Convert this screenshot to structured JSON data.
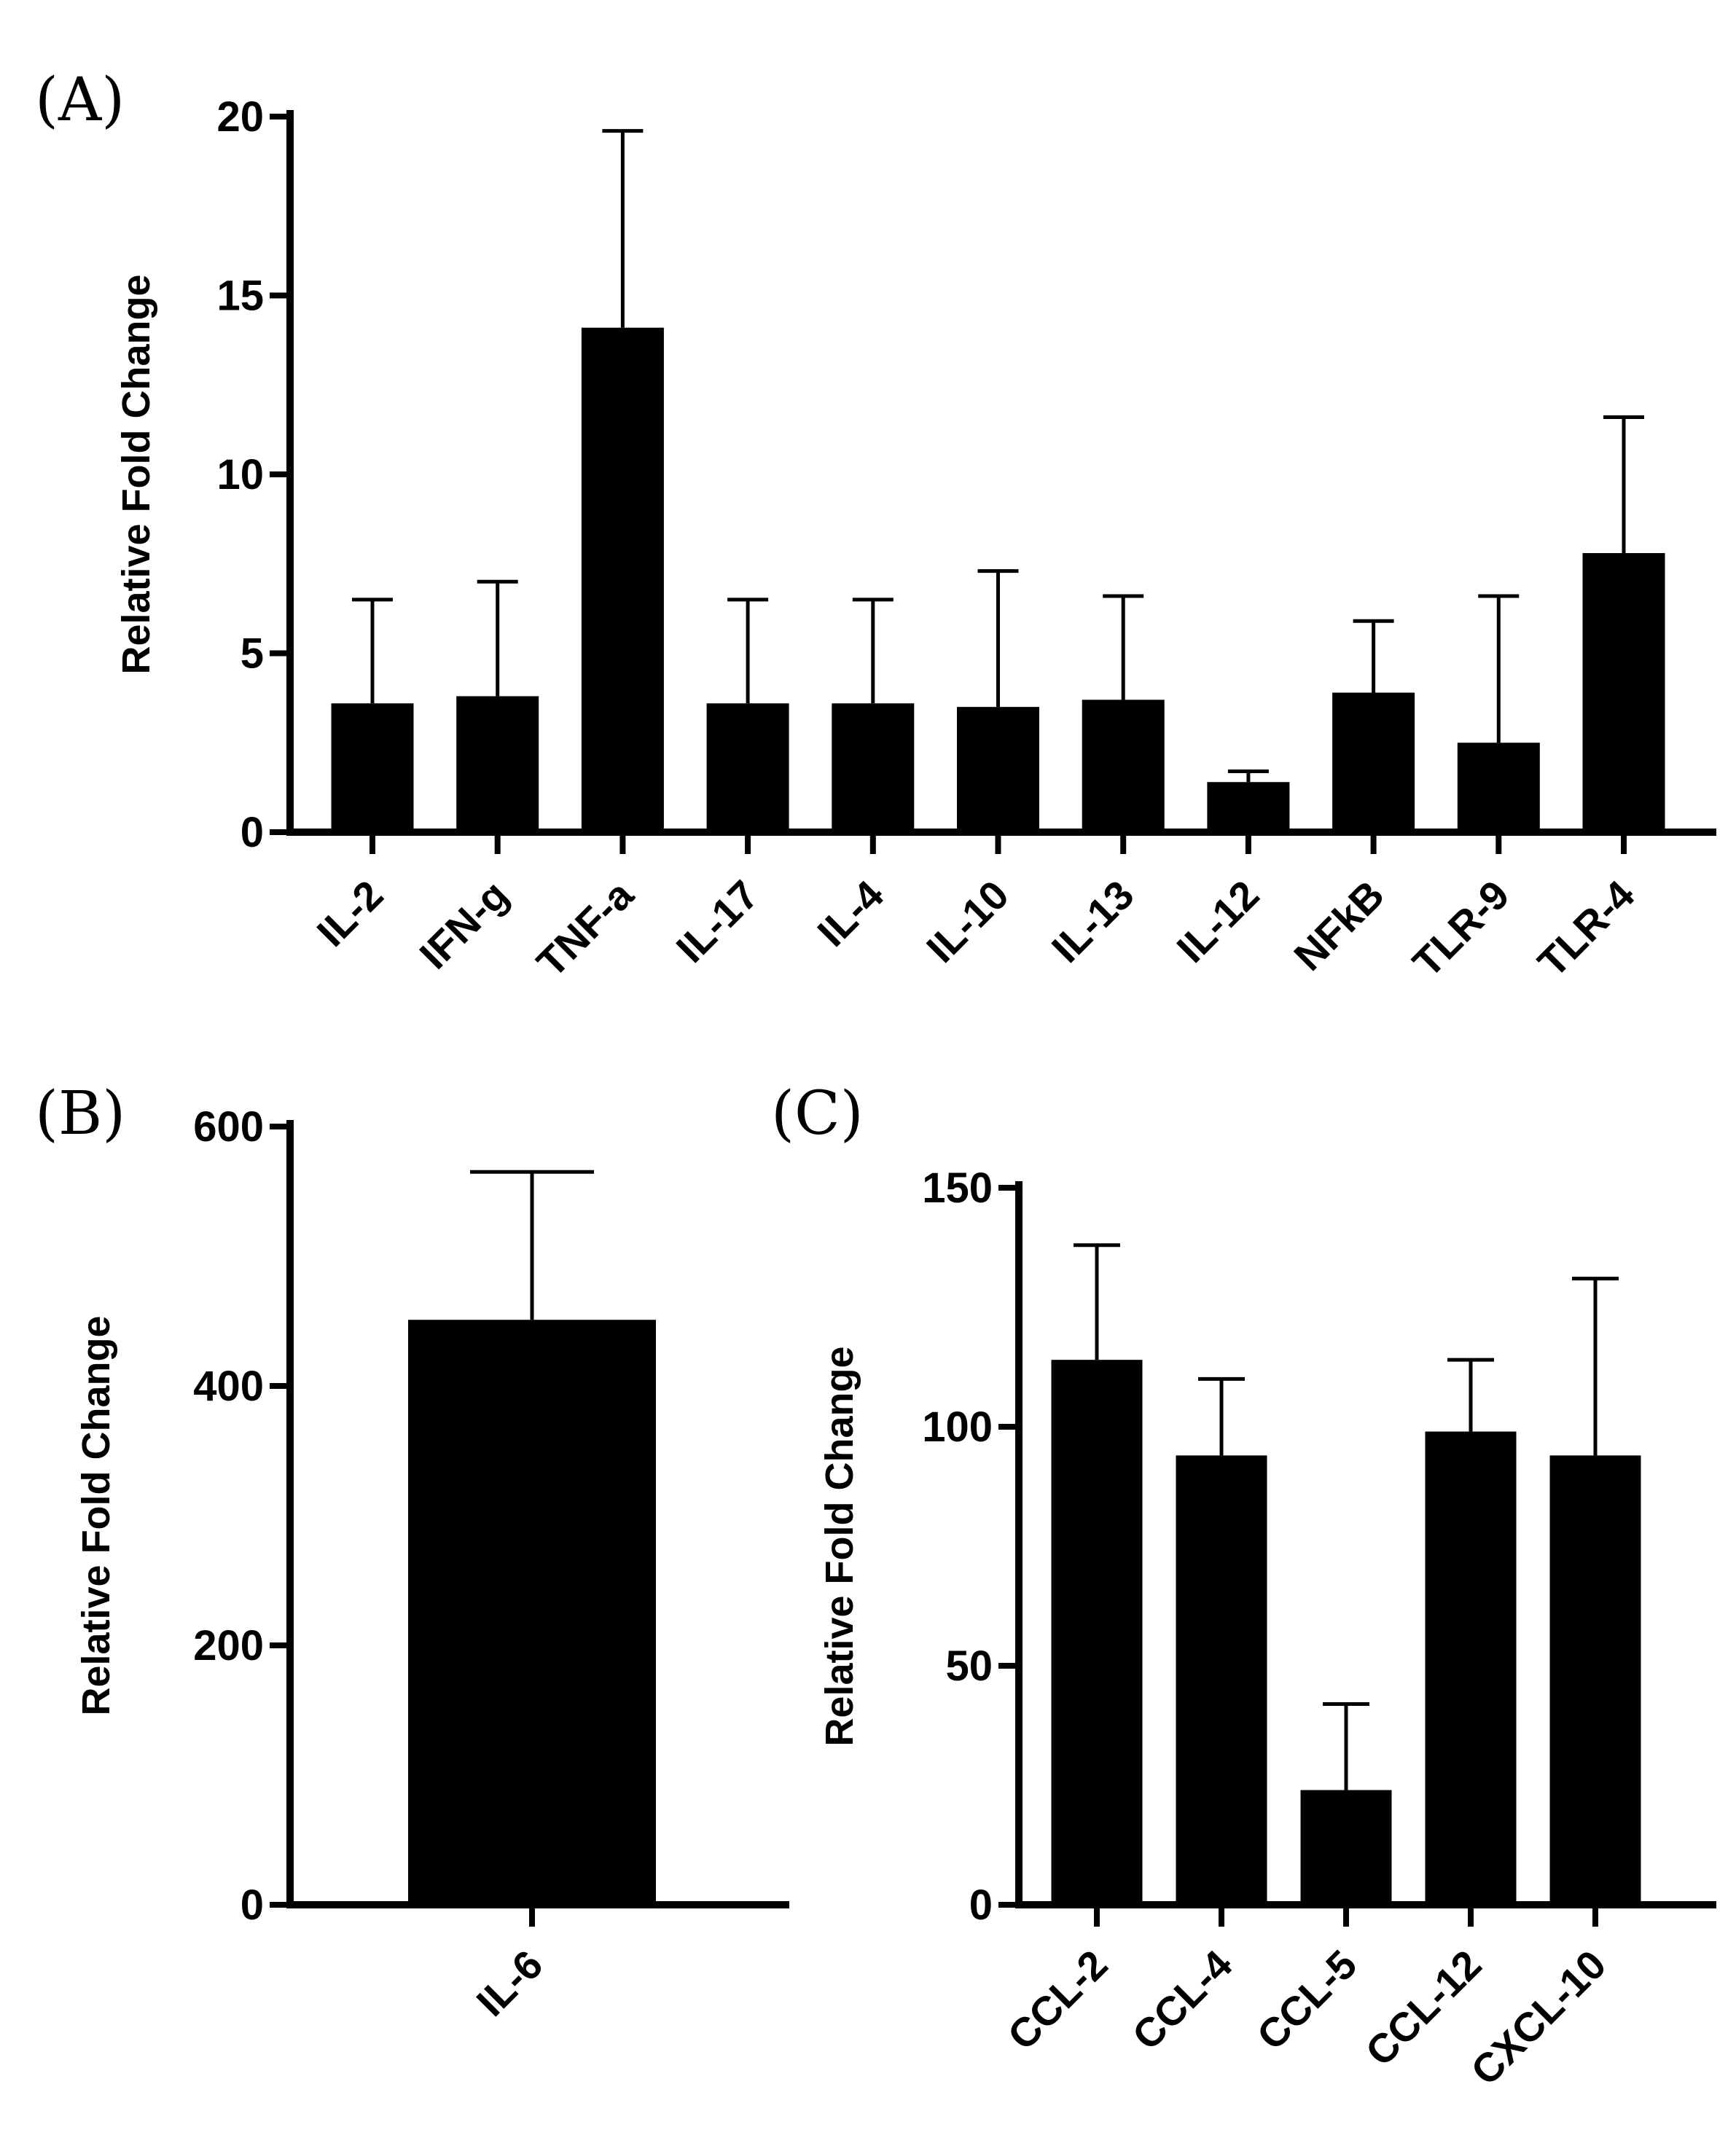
{
  "chart_data": [
    {
      "panel": "(A)",
      "type": "bar",
      "ylabel": "Relative Fold Change",
      "xlabel": "",
      "ylim": [
        0,
        20
      ],
      "yticks": [
        0,
        5,
        10,
        15,
        20
      ],
      "categories": [
        "IL-2",
        "IFN-g",
        "TNF-a",
        "IL-17",
        "IL-4",
        "IL-10",
        "IL-13",
        "IL-12",
        "NFkB",
        "TLR-9",
        "TLR-4"
      ],
      "values": [
        3.6,
        3.8,
        14.1,
        3.6,
        3.6,
        3.5,
        3.7,
        1.4,
        3.9,
        2.5,
        7.8
      ],
      "error_upper": [
        6.5,
        7.0,
        19.6,
        6.5,
        6.5,
        7.3,
        6.6,
        1.7,
        5.9,
        6.6,
        11.6
      ]
    },
    {
      "panel": "(B)",
      "type": "bar",
      "ylabel": "Relative Fold Change",
      "xlabel": "",
      "ylim": [
        0,
        600
      ],
      "yticks": [
        0,
        200,
        400,
        600
      ],
      "categories": [
        "IL-6"
      ],
      "values": [
        451
      ],
      "error_upper": [
        565
      ]
    },
    {
      "panel": "(C)",
      "type": "bar",
      "ylabel": "Relative Fold Change",
      "xlabel": "",
      "ylim": [
        0,
        150
      ],
      "yticks": [
        0,
        50,
        100,
        150
      ],
      "categories": [
        "CCL-2",
        "CCL-4",
        "CCL-5",
        "CCL-12",
        "CXCL-10"
      ],
      "values": [
        114,
        94,
        24,
        99,
        94
      ],
      "error_upper": [
        138,
        110,
        42,
        114,
        131
      ]
    }
  ]
}
